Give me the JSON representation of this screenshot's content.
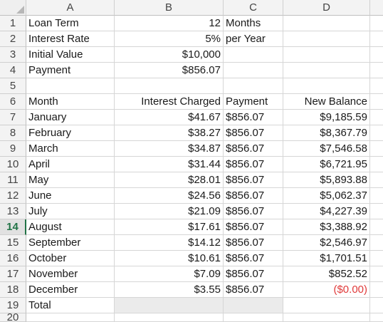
{
  "columns": [
    "A",
    "B",
    "C",
    "D"
  ],
  "row_numbers": [
    "1",
    "2",
    "3",
    "4",
    "5",
    "6",
    "7",
    "8",
    "9",
    "10",
    "11",
    "12",
    "13",
    "14",
    "15",
    "16",
    "17",
    "18",
    "19",
    "20"
  ],
  "active_row": "14",
  "colors": {
    "negative": "#e03a3a",
    "active_header": "#217346",
    "gridline": "#d6d6d6"
  },
  "cells": {
    "r1": [
      "Loan Term",
      "12",
      "Months",
      ""
    ],
    "r2": [
      "Interest Rate",
      "5%",
      "per Year",
      ""
    ],
    "r3": [
      "Initial Value",
      "$10,000",
      "",
      ""
    ],
    "r4": [
      "Payment",
      "$856.07",
      "",
      ""
    ],
    "r5": [
      "",
      "",
      "",
      ""
    ],
    "r6": [
      "Month",
      "Interest Charged",
      "Payment",
      "New Balance"
    ],
    "r7": [
      "January",
      "$41.67",
      "$856.07",
      "$9,185.59"
    ],
    "r8": [
      "February",
      "$38.27",
      "$856.07",
      "$8,367.79"
    ],
    "r9": [
      "March",
      "$34.87",
      "$856.07",
      "$7,546.58"
    ],
    "r10": [
      "April",
      "$31.44",
      "$856.07",
      "$6,721.95"
    ],
    "r11": [
      "May",
      "$28.01",
      "$856.07",
      "$5,893.88"
    ],
    "r12": [
      "June",
      "$24.56",
      "$856.07",
      "$5,062.37"
    ],
    "r13": [
      "July",
      "$21.09",
      "$856.07",
      "$4,227.39"
    ],
    "r14": [
      "August",
      "$17.61",
      "$856.07",
      "$3,388.92"
    ],
    "r15": [
      "September",
      "$14.12",
      "$856.07",
      "$2,546.97"
    ],
    "r16": [
      "October",
      "$10.61",
      "$856.07",
      "$1,701.51"
    ],
    "r17": [
      "November",
      "$7.09",
      "$856.07",
      "$852.52"
    ],
    "r18": [
      "December",
      "$3.55",
      "$856.07",
      "($0.00)"
    ],
    "r19": [
      "Total",
      "",
      "",
      ""
    ]
  }
}
